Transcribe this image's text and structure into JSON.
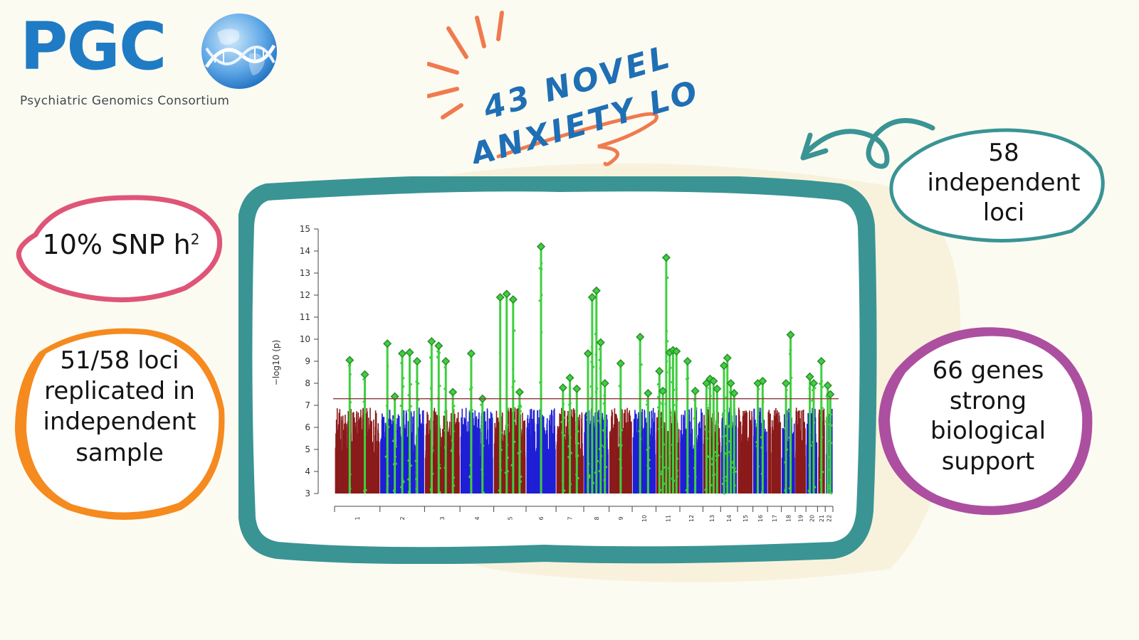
{
  "brand": {
    "logo_text": "PGC",
    "subtitle": "Psychiatric Genomics Consortium",
    "logo_color": "#1f7bc4"
  },
  "headline": {
    "line1": "43 NOVEL",
    "line2": "ANXIETY LOCI",
    "text_color": "#1f6fb5",
    "accent_color": "#f07a4f"
  },
  "callouts": {
    "heritability": {
      "main": "10% SNP h",
      "sup": "2",
      "color": "#df5577"
    },
    "replication": {
      "lines": [
        "51/58 loci",
        "replicated in",
        "independent",
        "sample"
      ],
      "color": "#f58a1f"
    },
    "independent_loci": {
      "lines": [
        "58",
        "independent",
        "loci"
      ],
      "color": "#3a9494"
    },
    "genes": {
      "lines": [
        "66 genes",
        "strong",
        "biological",
        "support"
      ],
      "color": "#ac4fa0"
    }
  },
  "frame": {
    "border_color": "#3a9494"
  },
  "chart_data": {
    "type": "scatter",
    "subtype": "manhattan",
    "ylabel": "−log10 (p)",
    "ylim": [
      3,
      15
    ],
    "yticks": [
      3,
      4,
      5,
      6,
      7,
      8,
      9,
      10,
      11,
      12,
      13,
      14,
      15
    ],
    "significance_threshold": 7.3,
    "threshold_color": "#8b3a3a",
    "chromosomes": [
      "1",
      "2",
      "3",
      "4",
      "5",
      "6",
      "7",
      "8",
      "9",
      "10",
      "11",
      "12",
      "13",
      "14",
      "15",
      "16",
      "17",
      "18",
      "19",
      "20",
      "21",
      "22"
    ],
    "chromosome_colors": [
      "#8b1a1a",
      "#1f1fd6"
    ],
    "locus_color": "#3fcf3f",
    "lead_snp_marker_color": "#2e8b2e",
    "lead_snps": [
      {
        "chr": "1",
        "p": 9.05
      },
      {
        "chr": "1",
        "p": 8.4
      },
      {
        "chr": "2",
        "p": 9.8
      },
      {
        "chr": "2",
        "p": 7.4
      },
      {
        "chr": "2",
        "p": 9.35
      },
      {
        "chr": "2",
        "p": 9.4
      },
      {
        "chr": "2",
        "p": 9.0
      },
      {
        "chr": "3",
        "p": 9.9
      },
      {
        "chr": "3",
        "p": 9.7
      },
      {
        "chr": "3",
        "p": 9.0
      },
      {
        "chr": "3",
        "p": 7.6
      },
      {
        "chr": "4",
        "p": 9.35
      },
      {
        "chr": "4",
        "p": 7.3
      },
      {
        "chr": "5",
        "p": 11.9
      },
      {
        "chr": "5",
        "p": 12.05
      },
      {
        "chr": "5",
        "p": 11.8
      },
      {
        "chr": "5",
        "p": 7.6
      },
      {
        "chr": "6",
        "p": 14.2
      },
      {
        "chr": "7",
        "p": 7.8
      },
      {
        "chr": "7",
        "p": 8.25
      },
      {
        "chr": "7",
        "p": 7.75
      },
      {
        "chr": "8",
        "p": 9.35
      },
      {
        "chr": "8",
        "p": 11.9
      },
      {
        "chr": "8",
        "p": 12.2
      },
      {
        "chr": "8",
        "p": 9.85
      },
      {
        "chr": "8",
        "p": 8.0
      },
      {
        "chr": "9",
        "p": 8.9
      },
      {
        "chr": "10",
        "p": 10.1
      },
      {
        "chr": "10",
        "p": 7.55
      },
      {
        "chr": "11",
        "p": 8.55
      },
      {
        "chr": "11",
        "p": 7.65
      },
      {
        "chr": "11",
        "p": 13.7
      },
      {
        "chr": "11",
        "p": 9.4
      },
      {
        "chr": "11",
        "p": 9.5
      },
      {
        "chr": "11",
        "p": 9.45
      },
      {
        "chr": "12",
        "p": 9.0
      },
      {
        "chr": "12",
        "p": 7.65
      },
      {
        "chr": "13",
        "p": 8.0
      },
      {
        "chr": "13",
        "p": 8.2
      },
      {
        "chr": "13",
        "p": 8.1
      },
      {
        "chr": "13",
        "p": 7.75
      },
      {
        "chr": "14",
        "p": 8.8
      },
      {
        "chr": "14",
        "p": 9.15
      },
      {
        "chr": "14",
        "p": 8.0
      },
      {
        "chr": "14",
        "p": 7.55
      },
      {
        "chr": "16",
        "p": 8.0
      },
      {
        "chr": "16",
        "p": 8.1
      },
      {
        "chr": "18",
        "p": 8.0
      },
      {
        "chr": "18",
        "p": 10.2
      },
      {
        "chr": "20",
        "p": 8.3
      },
      {
        "chr": "20",
        "p": 8.0
      },
      {
        "chr": "21",
        "p": 9.0
      },
      {
        "chr": "22",
        "p": 7.9
      },
      {
        "chr": "22",
        "p": 7.5
      }
    ]
  }
}
